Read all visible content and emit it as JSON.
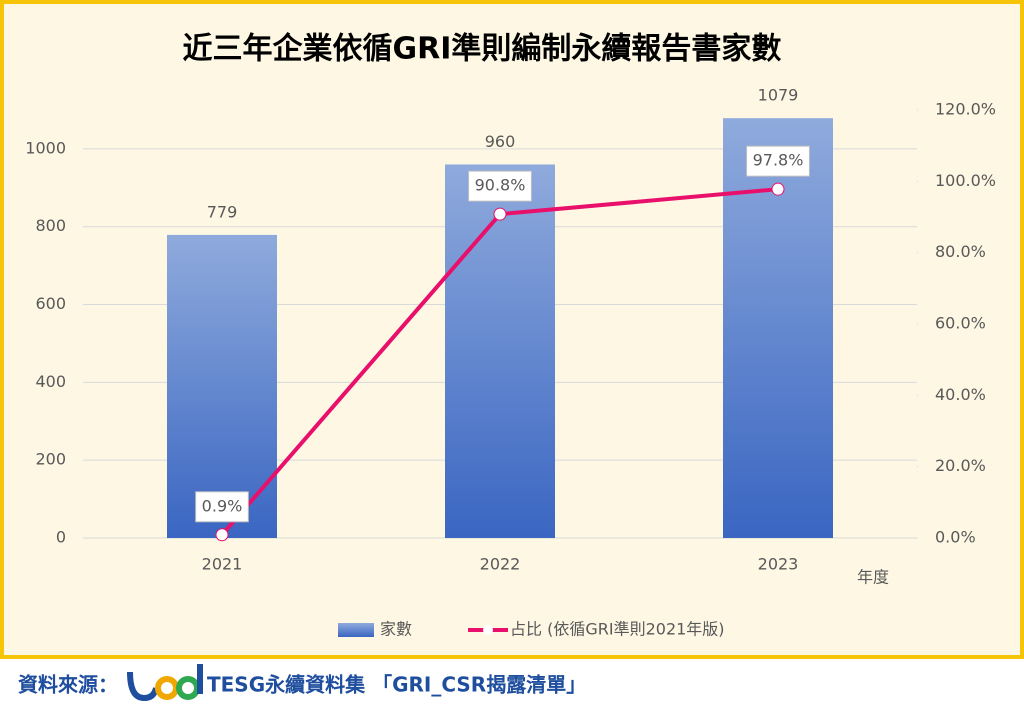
{
  "chart_data": {
    "type": "bar-line",
    "title": "近三年企業依循GRI準則編制永續報告書家數",
    "x_label": "年度",
    "categories": [
      "2021",
      "2022",
      "2023"
    ],
    "series": [
      {
        "name": "家數",
        "type": "bar",
        "color": "#4472c4",
        "values": [
          779,
          960,
          1079
        ]
      },
      {
        "name": "占比 (依循GRI準則2021年版)",
        "type": "line",
        "axis": "y2",
        "color": "#e8106b",
        "values": [
          0.9,
          90.8,
          97.8
        ],
        "value_labels": [
          "0.9%",
          "90.8%",
          "97.8%"
        ]
      }
    ],
    "ylim": [
      0,
      1100
    ],
    "yticks": [
      0,
      200,
      400,
      600,
      800,
      1000
    ],
    "y2lim": [
      0,
      120
    ],
    "y2ticks": [
      {
        "value": 0,
        "label": "0.0%"
      },
      {
        "value": 20,
        "label": "20.0%"
      },
      {
        "value": 40,
        "label": "40.0%"
      },
      {
        "value": 60,
        "label": "60.0%"
      },
      {
        "value": 80,
        "label": "80.0%"
      },
      {
        "value": 100,
        "label": "100.0%"
      },
      {
        "value": 120,
        "label": "120.0%"
      }
    ],
    "grid": true,
    "legend": "bottom"
  },
  "source": {
    "label": "資料來源：",
    "text": "TESG永續資料集 「GRI_CSR揭露清單」"
  }
}
